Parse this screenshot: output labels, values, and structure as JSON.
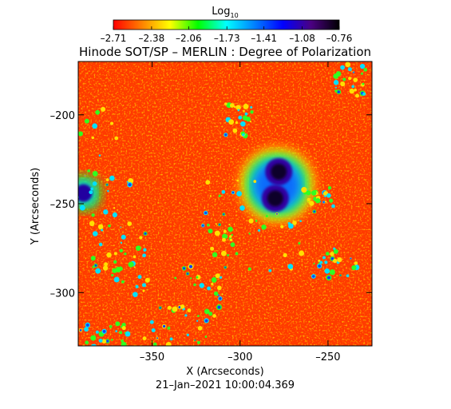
{
  "chart_data": {
    "type": "heatmap",
    "title": "Hinode SOT/SP – MERLIN : Degree of Polarization",
    "xlabel": "X (Arcseconds)",
    "ylabel": "Y (Arcseconds)",
    "timestamp": "21–Jan–2021 10:00:04.369",
    "xlim": [
      -392,
      -225
    ],
    "ylim": [
      -330,
      -170
    ],
    "x_ticks": [
      -350,
      -300,
      -250
    ],
    "x_tick_labels": [
      "–350",
      "–300",
      "–250"
    ],
    "y_ticks": [
      -200,
      -250,
      -300
    ],
    "y_tick_labels": [
      "–200",
      "–250",
      "–300"
    ],
    "colorbar": {
      "label": "Log",
      "label_sub": "10",
      "min": -2.71,
      "max": -0.76,
      "ticks": [
        -2.71,
        -2.38,
        -2.06,
        -1.73,
        -1.41,
        -1.08,
        -0.76
      ],
      "tick_labels": [
        "–2.71",
        "–2.38",
        "–2.06",
        "–1.73",
        "–1.41",
        "–1.08",
        "–0.76"
      ],
      "colors": [
        "#ff0000",
        "#ff8000",
        "#ffff00",
        "#00ff00",
        "#00ffff",
        "#0080ff",
        "#0000ff",
        "#4b0082",
        "#000000"
      ]
    },
    "features": [
      {
        "x": -278,
        "y": -232,
        "value": -0.8
      },
      {
        "x": -280,
        "y": -247,
        "value": -0.8
      },
      {
        "x": -389,
        "y": -244,
        "value": -1.0
      }
    ]
  }
}
